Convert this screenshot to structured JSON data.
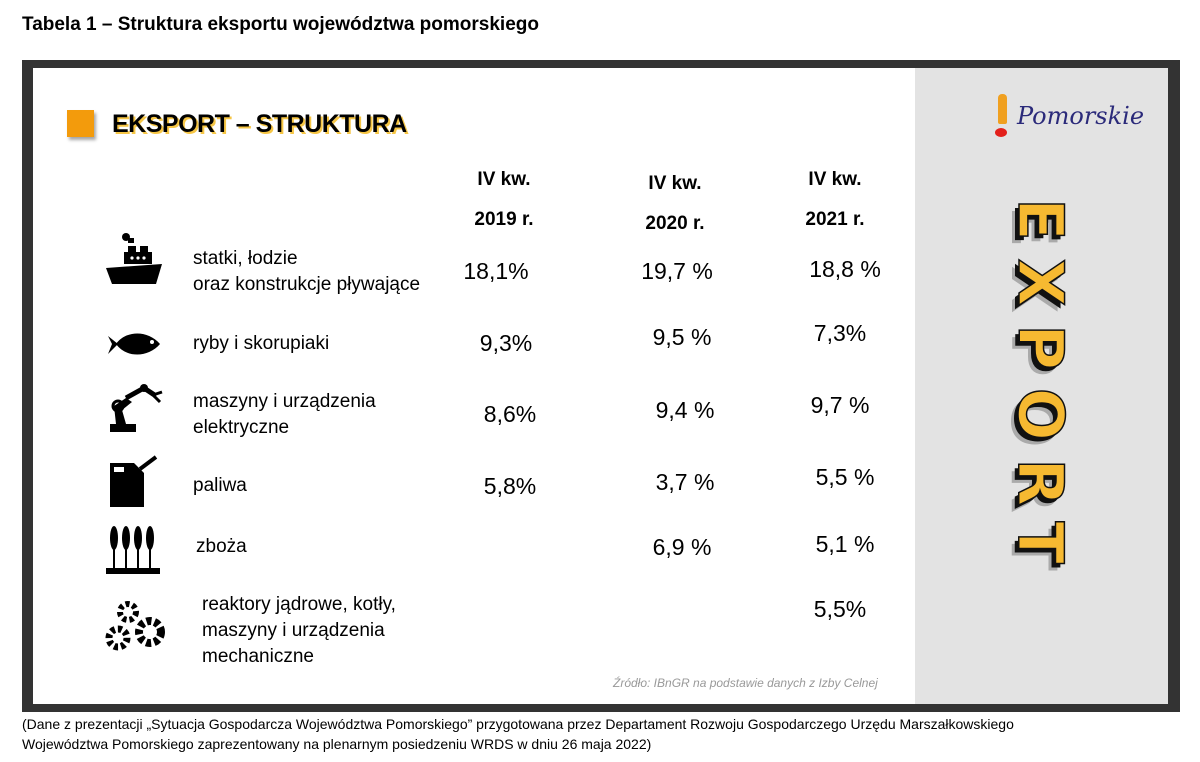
{
  "title": "Tabela 1 – Struktura eksportu województwa pomorskiego",
  "slide": {
    "heading": "EKSPORT – STRUKTURA",
    "columns": [
      {
        "line1": "IV kw.",
        "line2": "2019 r."
      },
      {
        "line1": "IV kw.",
        "line2": "2020 r."
      },
      {
        "line1": "IV kw.",
        "line2": "2021 r."
      }
    ],
    "rows": [
      {
        "icon": "ship-icon",
        "label": [
          "statki, łodzie",
          "oraz konstrukcje pływające"
        ],
        "values": [
          "18,1%",
          "19,7 %",
          "18,8 %"
        ]
      },
      {
        "icon": "fish-icon",
        "label": [
          "ryby i skorupiaki"
        ],
        "values": [
          "9,3%",
          "9,5 %",
          "7,3%"
        ]
      },
      {
        "icon": "robot-arm-icon",
        "label": [
          "maszyny i urządzenia",
          "elektryczne"
        ],
        "values": [
          "8,6%",
          "9,4 %",
          "9,7 %"
        ]
      },
      {
        "icon": "fuel-can-icon",
        "label": [
          "paliwa"
        ],
        "values": [
          "5,8%",
          "3,7 %",
          "5,5 %"
        ]
      },
      {
        "icon": "wheat-icon",
        "label": [
          "zboża"
        ],
        "values": [
          "",
          "6,9 %",
          "5,1 %"
        ]
      },
      {
        "icon": "gears-icon",
        "label": [
          "reaktory jądrowe, kotły,",
          "maszyny i urządzenia",
          "mechaniczne"
        ],
        "values": [
          "",
          "",
          "5,5%"
        ]
      }
    ],
    "source": "Źródło:  IBnGR na podstawie danych z Izby Celnej",
    "logo_text": "Pomorskie",
    "side_graphic_text": "EXPORT",
    "colors": {
      "accent": "#f39b0c",
      "side_panel": "#e3e3e3",
      "logo": "#2b2a7a"
    }
  },
  "footnote": [
    "(Dane z prezentacji „Sytuacja Gospodarcza Województwa Pomorskiego” przygotowana przez Departament Rozwoju Gospodarczego Urzędu Marszałkowskiego",
    "Województwa Pomorskiego zaprezentowany na plenarnym posiedzeniu WRDS w dniu 26 maja 2022)"
  ]
}
